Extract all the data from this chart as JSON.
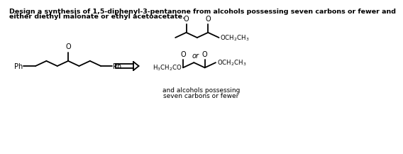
{
  "background_color": "#ffffff",
  "text_color": "#000000",
  "line_color": "#000000",
  "title_line1": "Design a synthesis of 1,5-diphenyl-3-pentanone from alcohols possessing seven carbons or fewer and",
  "title_line2": "either diethyl malonate or ethyl acetoacetate.",
  "font_size_title": 6.8,
  "font_size_mol": 7.0,
  "font_size_label": 6.2,
  "font_size_or": 7.0,
  "font_size_bottom_text": 6.5
}
